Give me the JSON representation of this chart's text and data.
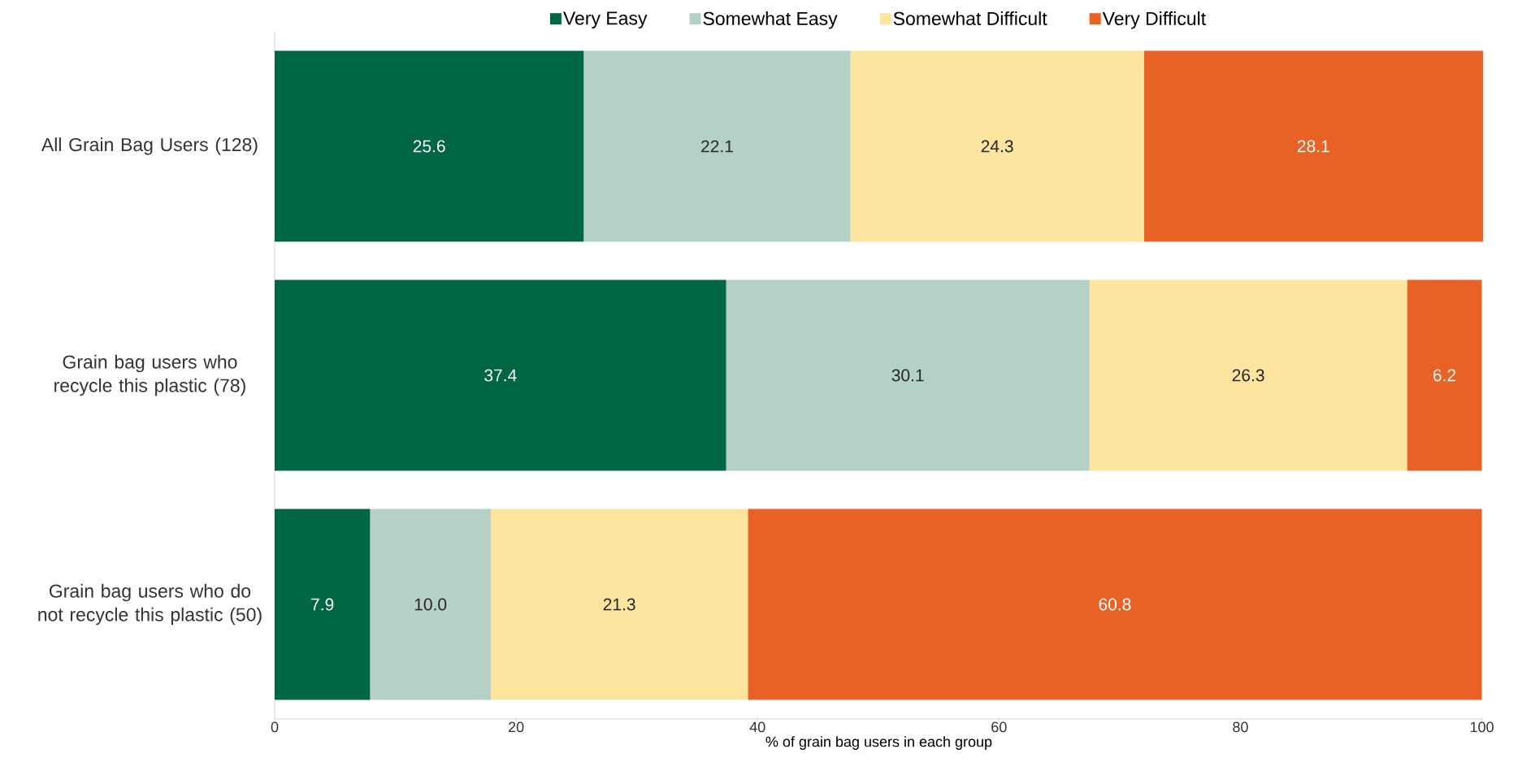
{
  "chart_data": {
    "type": "bar",
    "orientation": "horizontal",
    "stacked": true,
    "categories": [
      "All Grain Bag Users (128)",
      "Grain bag users who recycle this plastic (78)",
      "Grain bag users who do not recycle this plastic (50)"
    ],
    "series": [
      {
        "name": "Very Easy",
        "color": "#006646",
        "values": [
          25.6,
          37.4,
          7.9
        ],
        "value_labels": [
          "25.6",
          "37.4",
          "7.9"
        ]
      },
      {
        "name": "Somewhat Easy",
        "color": "#b5d1c5",
        "values": [
          22.1,
          30.1,
          10.0
        ],
        "value_labels": [
          "22.1",
          "30.1",
          "10.0"
        ]
      },
      {
        "name": "Somewhat Difficult",
        "color": "#fde5a0",
        "values": [
          24.3,
          26.3,
          21.3
        ],
        "value_labels": [
          "24.3",
          "26.3",
          "21.3"
        ]
      },
      {
        "name": "Very Difficult",
        "color": "#e86225",
        "values": [
          28.1,
          6.2,
          60.8
        ],
        "value_labels": [
          "28.1",
          "6.2",
          "60.8"
        ]
      }
    ],
    "xlim": [
      0,
      100.1
    ],
    "xticks": [
      0,
      20,
      40,
      60,
      80,
      100
    ],
    "xlabel": "% of grain bag users in each group",
    "legend": "top"
  }
}
